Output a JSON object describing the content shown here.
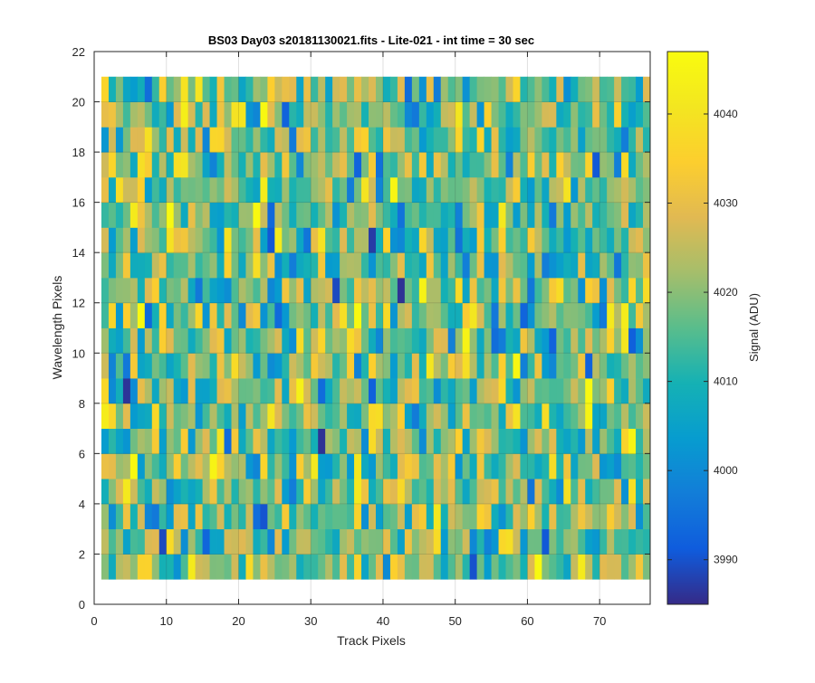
{
  "chart_data": {
    "type": "heatmap",
    "title": "BS03 Day03  s20181130021.fits - Lite-021 - int time = 30 sec",
    "xlabel": "Track Pixels",
    "ylabel": "Wavelength Pixels",
    "xlim": [
      0,
      77
    ],
    "ylim": [
      0,
      22
    ],
    "xticks": [
      0,
      10,
      20,
      30,
      40,
      50,
      60,
      70
    ],
    "yticks": [
      0,
      2,
      4,
      6,
      8,
      10,
      12,
      14,
      16,
      18,
      20,
      22
    ],
    "x_cells": {
      "start": 1,
      "end": 77,
      "count": 76
    },
    "y_cells": {
      "start": 1,
      "end": 21,
      "count": 20
    },
    "grid": true,
    "colormap": "parula",
    "colorbar": {
      "label": "Signal (ADU)",
      "range": [
        3985,
        4047
      ],
      "ticks": [
        3990,
        4000,
        4010,
        4020,
        4030,
        4040
      ]
    },
    "values_note_seed": 20181130,
    "value_center": 4018,
    "value_spread": 11,
    "notable_cells": [
      {
        "x": 42,
        "y": 12,
        "value": 3986
      },
      {
        "x": 52,
        "y": 1,
        "value": 3990
      },
      {
        "x": 10,
        "y": 15,
        "value": 4046
      },
      {
        "x": 36,
        "y": 11,
        "value": 4046
      },
      {
        "x": 74,
        "y": 6,
        "value": 4045
      }
    ]
  }
}
